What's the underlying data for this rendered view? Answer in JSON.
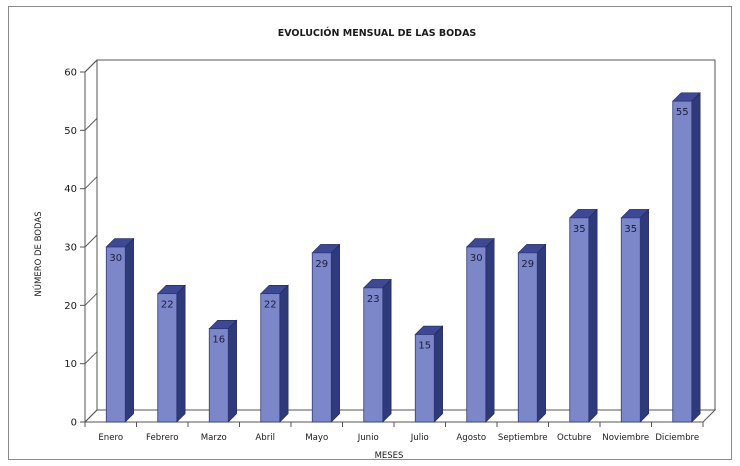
{
  "chart_data": {
    "type": "bar",
    "title": "EVOLUCIÓN MENSUAL DE LAS BODAS",
    "xlabel": "MESES",
    "ylabel": "NÚMERO DE BODAS",
    "categories": [
      "Enero",
      "Febrero",
      "Marzo",
      "Abril",
      "Mayo",
      "Junio",
      "Julio",
      "Agosto",
      "Septiembre",
      "Octubre",
      "Noviembre",
      "Diciembre"
    ],
    "values": [
      30,
      22,
      16,
      22,
      29,
      23,
      15,
      30,
      29,
      35,
      35,
      55
    ],
    "ylim": [
      0,
      60
    ],
    "yticks": [
      0,
      10,
      20,
      30,
      40,
      50,
      60
    ],
    "data_labels": true,
    "legend": "none",
    "grid": false,
    "bar_style": "3d",
    "colors": {
      "bar_front": "#7b87c9",
      "bar_side": "#2f3a7a",
      "bar_top": "#3d4994",
      "axis": "#555555"
    }
  }
}
